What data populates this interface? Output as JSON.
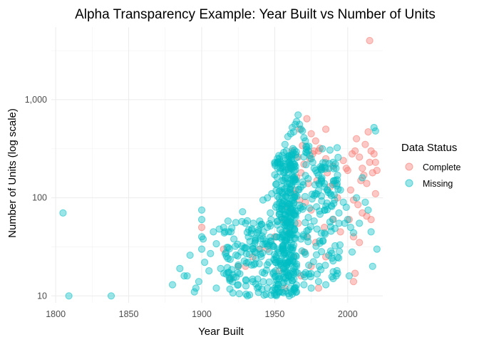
{
  "chart_data": {
    "type": "scatter",
    "title": "Alpha Transparency Example: Year Built vs Number of Units",
    "xlabel": "Year Built",
    "ylabel": "Number of Units (log scale)",
    "xlim": [
      1797,
      2024
    ],
    "ylim": [
      8.5,
      5500
    ],
    "y_scale": "log",
    "grid": true,
    "x_ticks": [
      1800,
      1850,
      1900,
      1950,
      2000
    ],
    "x_tick_labels": [
      "1800",
      "1850",
      "1900",
      "1950",
      "2000"
    ],
    "y_ticks": [
      10,
      100,
      1000
    ],
    "y_tick_labels": [
      "10",
      "100",
      "1,000"
    ],
    "legend": {
      "title": "Data Status",
      "placement": "right"
    },
    "series": [
      {
        "name": "Complete",
        "color": "#F8766D",
        "points": [
          [
            2015,
            4000
          ],
          [
            1972,
            640
          ],
          [
            1967,
            500
          ],
          [
            1975,
            450
          ],
          [
            1962,
            300
          ],
          [
            1978,
            380
          ],
          [
            1966,
            260
          ],
          [
            1970,
            220
          ],
          [
            1968,
            180
          ],
          [
            1960,
            200
          ],
          [
            1980,
            300
          ],
          [
            1985,
            250
          ],
          [
            1965,
            160
          ],
          [
            1973,
            140
          ],
          [
            1964,
            120
          ],
          [
            1969,
            340
          ],
          [
            1976,
            280
          ],
          [
            1982,
            200
          ],
          [
            1990,
            210
          ],
          [
            1958,
            80
          ],
          [
            1955,
            60
          ],
          [
            1963,
            110
          ],
          [
            1971,
            90
          ],
          [
            1975,
            75
          ],
          [
            1979,
            150
          ],
          [
            1988,
            130
          ],
          [
            1993,
            100
          ],
          [
            2005,
            300
          ],
          [
            2008,
            260
          ],
          [
            2010,
            200
          ],
          [
            2012,
            350
          ],
          [
            2014,
            470
          ],
          [
            2016,
            300
          ],
          [
            2018,
            280
          ],
          [
            2019,
            230
          ],
          [
            2020,
            190
          ],
          [
            2017,
            180
          ],
          [
            2011,
            170
          ],
          [
            2006,
            400
          ],
          [
            2003,
            280
          ],
          [
            2009,
            150
          ],
          [
            2013,
            140
          ],
          [
            2015,
            230
          ],
          [
            2000,
            190
          ],
          [
            2002,
            120
          ],
          [
            2004,
            95
          ],
          [
            2007,
            85
          ],
          [
            2010,
            70
          ],
          [
            2013,
            65
          ],
          [
            2016,
            60
          ],
          [
            2019,
            110
          ],
          [
            2001,
            60
          ],
          [
            2004,
            40
          ],
          [
            2008,
            35
          ],
          [
            2005,
            17
          ],
          [
            2004,
            14
          ],
          [
            1950,
            40
          ],
          [
            1945,
            30
          ],
          [
            1940,
            30
          ],
          [
            1935,
            25
          ],
          [
            1930,
            20
          ],
          [
            1925,
            20
          ],
          [
            1920,
            15
          ],
          [
            1960,
            45
          ],
          [
            1966,
            55
          ],
          [
            1972,
            40
          ],
          [
            1978,
            35
          ],
          [
            1984,
            50
          ],
          [
            1990,
            60
          ],
          [
            1995,
            45
          ],
          [
            1985,
            25
          ],
          [
            1975,
            20
          ],
          [
            1968,
            16
          ],
          [
            1980,
            12
          ],
          [
            1957,
            12
          ],
          [
            1953,
            18
          ],
          [
            1963,
            25
          ],
          [
            1970,
            28
          ],
          [
            1962,
            70
          ],
          [
            1967,
            95
          ],
          [
            1974,
            250
          ],
          [
            1977,
            300
          ],
          [
            1981,
            320
          ],
          [
            1986,
            180
          ],
          [
            1991,
            140
          ],
          [
            1997,
            240
          ],
          [
            1999,
            200
          ],
          [
            1900,
            50
          ],
          [
            1915,
            30
          ],
          [
            1985,
            500
          ]
        ]
      },
      {
        "name": "Missing",
        "color": "#00BFC4",
        "points": [
          [
            1805,
            70
          ],
          [
            1809,
            10
          ],
          [
            1838,
            10
          ],
          [
            1880,
            13
          ],
          [
            1885,
            19
          ],
          [
            1888,
            16
          ],
          [
            1890,
            16
          ],
          [
            1892,
            26
          ],
          [
            1895,
            11
          ],
          [
            1898,
            14
          ],
          [
            1900,
            75
          ],
          [
            1900,
            60
          ],
          [
            1900,
            40
          ],
          [
            1900,
            30
          ],
          [
            1902,
            22
          ],
          [
            1905,
            18
          ],
          [
            1908,
            45
          ],
          [
            1910,
            34
          ],
          [
            1912,
            48
          ],
          [
            1915,
            50
          ],
          [
            1918,
            58
          ],
          [
            1920,
            45
          ],
          [
            1922,
            38
          ],
          [
            1925,
            20
          ],
          [
            1928,
            72
          ],
          [
            1930,
            55
          ],
          [
            1932,
            40
          ],
          [
            1935,
            30
          ],
          [
            1937,
            24
          ],
          [
            1940,
            52
          ],
          [
            1942,
            95
          ],
          [
            1945,
            100
          ],
          [
            1947,
            70
          ],
          [
            1948,
            110
          ],
          [
            1950,
            12
          ],
          [
            1951,
            40
          ],
          [
            1952,
            200
          ],
          [
            1953,
            250
          ],
          [
            1954,
            220
          ],
          [
            1955,
            270
          ],
          [
            1956,
            180
          ],
          [
            1957,
            350
          ],
          [
            1958,
            300
          ],
          [
            1959,
            420
          ],
          [
            1960,
            260
          ],
          [
            1961,
            450
          ],
          [
            1962,
            520
          ],
          [
            1963,
            470
          ],
          [
            1964,
            560
          ],
          [
            1965,
            600
          ],
          [
            1966,
            700
          ],
          [
            1967,
            560
          ],
          [
            1968,
            500
          ],
          [
            1969,
            480
          ],
          [
            1970,
            410
          ],
          [
            1971,
            380
          ],
          [
            1972,
            330
          ],
          [
            1973,
            300
          ],
          [
            1974,
            270
          ],
          [
            1975,
            250
          ],
          [
            1976,
            230
          ],
          [
            1977,
            200
          ],
          [
            1978,
            190
          ],
          [
            1979,
            180
          ],
          [
            1980,
            170
          ],
          [
            1982,
            150
          ],
          [
            1984,
            140
          ],
          [
            1986,
            120
          ],
          [
            1988,
            110
          ],
          [
            1990,
            230
          ],
          [
            1992,
            200
          ],
          [
            1993,
            170
          ],
          [
            1995,
            120
          ],
          [
            1997,
            90
          ],
          [
            1999,
            80
          ],
          [
            2000,
            60
          ],
          [
            2002,
            50
          ],
          [
            2004,
            44
          ],
          [
            2006,
            100
          ],
          [
            2008,
            55
          ],
          [
            2010,
            160
          ],
          [
            2012,
            90
          ],
          [
            2014,
            75
          ],
          [
            2016,
            45
          ],
          [
            2018,
            520
          ],
          [
            2019,
            480
          ],
          [
            2020,
            30
          ],
          [
            2017,
            20
          ],
          [
            2003,
            28
          ],
          [
            2001,
            16
          ],
          [
            1896,
            12
          ],
          [
            1910,
            12
          ],
          [
            1925,
            13
          ],
          [
            1935,
            14
          ],
          [
            1945,
            12
          ],
          [
            1955,
            11
          ],
          [
            1960,
            10
          ],
          [
            1965,
            11
          ],
          [
            1970,
            13
          ],
          [
            1975,
            12
          ],
          [
            1980,
            14
          ],
          [
            1985,
            13
          ],
          [
            1990,
            15
          ],
          [
            1987,
            26
          ],
          [
            1983,
            36
          ],
          [
            1979,
            48
          ],
          [
            1973,
            63
          ],
          [
            1967,
            84
          ],
          [
            1961,
            112
          ],
          [
            1956,
            150
          ],
          [
            1952,
            58
          ],
          [
            1949,
            32
          ],
          [
            1946,
            22
          ],
          [
            1943,
            17
          ],
          [
            1938,
            44
          ],
          [
            1933,
            36
          ],
          [
            1927,
            28
          ],
          [
            1923,
            32
          ],
          [
            1918,
            24
          ],
          [
            1913,
            19
          ],
          [
            1906,
            27
          ],
          [
            1901,
            38
          ],
          [
            1963,
            33
          ],
          [
            1958,
            27
          ],
          [
            1968,
            38
          ],
          [
            1972,
            46
          ],
          [
            1977,
            58
          ],
          [
            1981,
            68
          ],
          [
            1985,
            82
          ],
          [
            1991,
            95
          ],
          [
            1994,
            70
          ],
          [
            1998,
            55
          ]
        ]
      }
    ]
  }
}
